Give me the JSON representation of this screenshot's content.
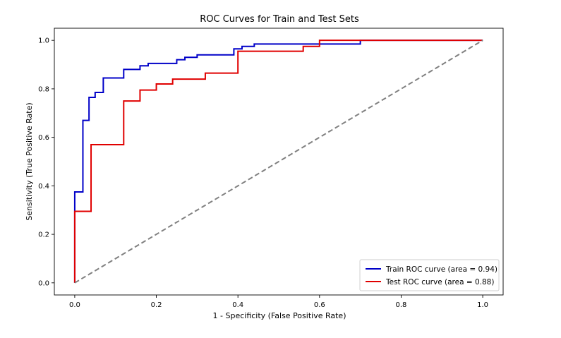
{
  "chart_data": {
    "type": "line",
    "title": "ROC Curves for Train and Test Sets",
    "xlabel": "1 - Specificity (False Positive Rate)",
    "ylabel": "Sensitivity (True Positive Rate)",
    "xlim": [
      -0.05,
      1.05
    ],
    "ylim": [
      -0.05,
      1.05
    ],
    "xticks": [
      0.0,
      0.2,
      0.4,
      0.6,
      0.8,
      1.0
    ],
    "yticks": [
      0.0,
      0.2,
      0.4,
      0.6,
      0.8,
      1.0
    ],
    "xtick_labels": [
      "0.0",
      "0.2",
      "0.4",
      "0.6",
      "0.8",
      "1.0"
    ],
    "ytick_labels": [
      "0.0",
      "0.2",
      "0.4",
      "0.6",
      "0.8",
      "1.0"
    ],
    "grid": false,
    "legend_position": "bottom-right",
    "series": [
      {
        "name": "Train ROC curve (area = 0.94)",
        "color": "#0000c8",
        "style": "solid",
        "x": [
          0.0,
          0.0,
          0.02,
          0.02,
          0.035,
          0.035,
          0.05,
          0.05,
          0.07,
          0.07,
          0.12,
          0.12,
          0.16,
          0.16,
          0.18,
          0.18,
          0.25,
          0.25,
          0.27,
          0.27,
          0.3,
          0.3,
          0.39,
          0.39,
          0.41,
          0.41,
          0.44,
          0.44,
          0.7,
          0.7,
          1.0
        ],
        "y": [
          0.0,
          0.375,
          0.375,
          0.67,
          0.67,
          0.765,
          0.765,
          0.785,
          0.785,
          0.845,
          0.845,
          0.88,
          0.88,
          0.895,
          0.895,
          0.905,
          0.905,
          0.92,
          0.92,
          0.93,
          0.93,
          0.94,
          0.94,
          0.965,
          0.965,
          0.975,
          0.975,
          0.985,
          0.985,
          1.0,
          1.0
        ]
      },
      {
        "name": "Test ROC curve (area = 0.88)",
        "color": "#e00000",
        "style": "solid",
        "x": [
          0.0,
          0.0,
          0.04,
          0.04,
          0.12,
          0.12,
          0.16,
          0.16,
          0.2,
          0.2,
          0.24,
          0.24,
          0.32,
          0.32,
          0.4,
          0.4,
          0.56,
          0.56,
          0.6,
          0.6,
          1.0
        ],
        "y": [
          0.0,
          0.295,
          0.295,
          0.57,
          0.57,
          0.75,
          0.75,
          0.795,
          0.795,
          0.82,
          0.82,
          0.84,
          0.84,
          0.865,
          0.865,
          0.955,
          0.955,
          0.975,
          0.975,
          1.0,
          1.0
        ]
      },
      {
        "name": "",
        "color": "#808080",
        "style": "dashed",
        "x": [
          0.0,
          1.0
        ],
        "y": [
          0.0,
          1.0
        ]
      }
    ]
  }
}
